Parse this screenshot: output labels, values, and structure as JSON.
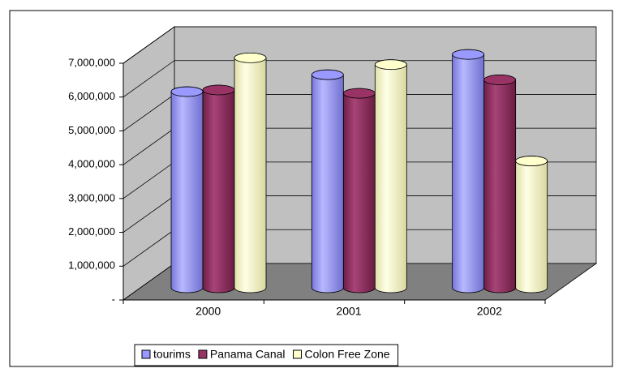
{
  "chart_data": {
    "type": "bar",
    "categories": [
      "2000",
      "2001",
      "2002"
    ],
    "series": [
      {
        "name": "tourims",
        "color": "#9999ff",
        "values": [
          5800000,
          6300000,
          6900000
        ]
      },
      {
        "name": "Panama Canal",
        "color": "#993366",
        "values": [
          5850000,
          5750000,
          6150000
        ]
      },
      {
        "name": "Colon Free Zone",
        "color": "#ffffcc",
        "values": [
          6800000,
          6600000,
          3750000
        ]
      }
    ],
    "ylim": [
      0,
      7000000
    ],
    "yticks": [
      {
        "value": 0,
        "label": "-"
      },
      {
        "value": 1000000,
        "label": "1,000,000"
      },
      {
        "value": 2000000,
        "label": "2,000,000"
      },
      {
        "value": 3000000,
        "label": "3,000,000"
      },
      {
        "value": 4000000,
        "label": "4,000,000"
      },
      {
        "value": 5000000,
        "label": "5,000,000"
      },
      {
        "value": 6000000,
        "label": "6,000,000"
      },
      {
        "value": 7000000,
        "label": "7,000,000"
      }
    ],
    "grid": true,
    "legend": "bottom"
  }
}
